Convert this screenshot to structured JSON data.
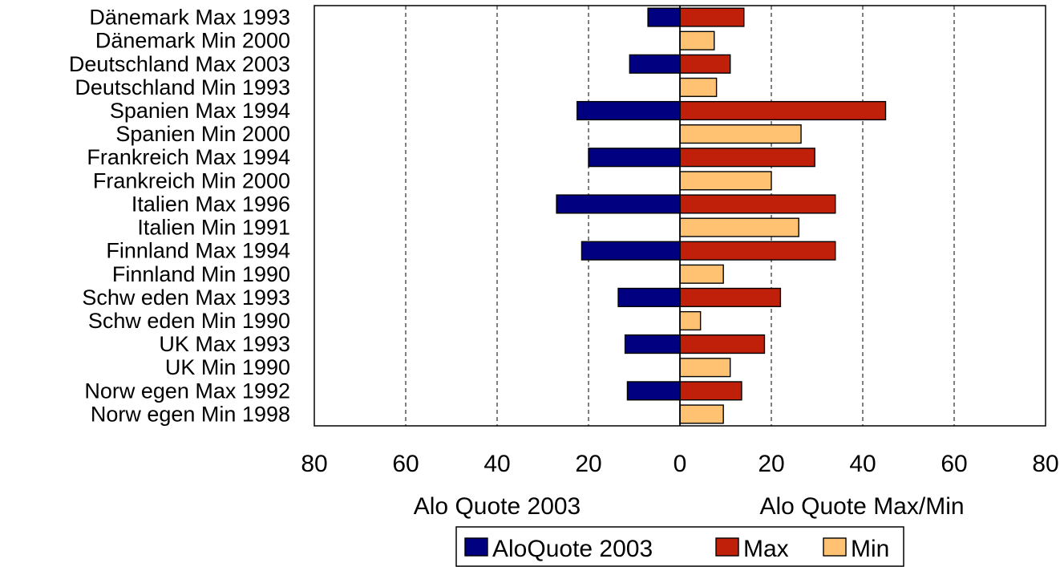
{
  "chart_data": {
    "type": "bar",
    "orientation": "horizontal",
    "categories": [
      "Dänemark Max 1993",
      "Dänemark Min 2000",
      "Deutschland Max 2003",
      "Deutschland Min 1993",
      "Spanien Max 1994",
      "Spanien Min 2000",
      "Frankreich Max 1994",
      "Frankreich Min 2000",
      "Italien Max 1996",
      "Italien Min 1991",
      "Finnland Max 1994",
      "Finnland Min 1990",
      "Schw eden Max 1993",
      "Schw eden Min 1990",
      "UK Max 1993",
      "UK Min 1990",
      "Norw egen Max 1992",
      "Norw egen Min 1998"
    ],
    "series": [
      {
        "name": "AloQuote 2003",
        "color": "#000080",
        "side": "left",
        "values": [
          7,
          null,
          11,
          null,
          22.5,
          null,
          20,
          null,
          27,
          null,
          21.5,
          null,
          13.5,
          null,
          12,
          null,
          11.5,
          null
        ]
      },
      {
        "name": "Max",
        "color": "#C0200A",
        "side": "right",
        "values": [
          14,
          null,
          11,
          null,
          45,
          null,
          29.5,
          null,
          34,
          null,
          34,
          null,
          22,
          null,
          18.5,
          null,
          13.5,
          null
        ]
      },
      {
        "name": "Min",
        "color": "#FFC273",
        "side": "right",
        "values": [
          null,
          7.5,
          null,
          8,
          null,
          26.5,
          null,
          20,
          null,
          26,
          null,
          9.5,
          null,
          4.5,
          null,
          11,
          null,
          9.5
        ]
      }
    ],
    "x_ticks": [
      "80",
      "60",
      "40",
      "20",
      "0",
      "20",
      "40",
      "60",
      "80"
    ],
    "xlim": [
      -80,
      80
    ],
    "xlabel_left": "Alo Quote 2003",
    "xlabel_right": "Alo Quote Max/Min",
    "grid": "vertical dashed",
    "legend_position": "bottom"
  }
}
